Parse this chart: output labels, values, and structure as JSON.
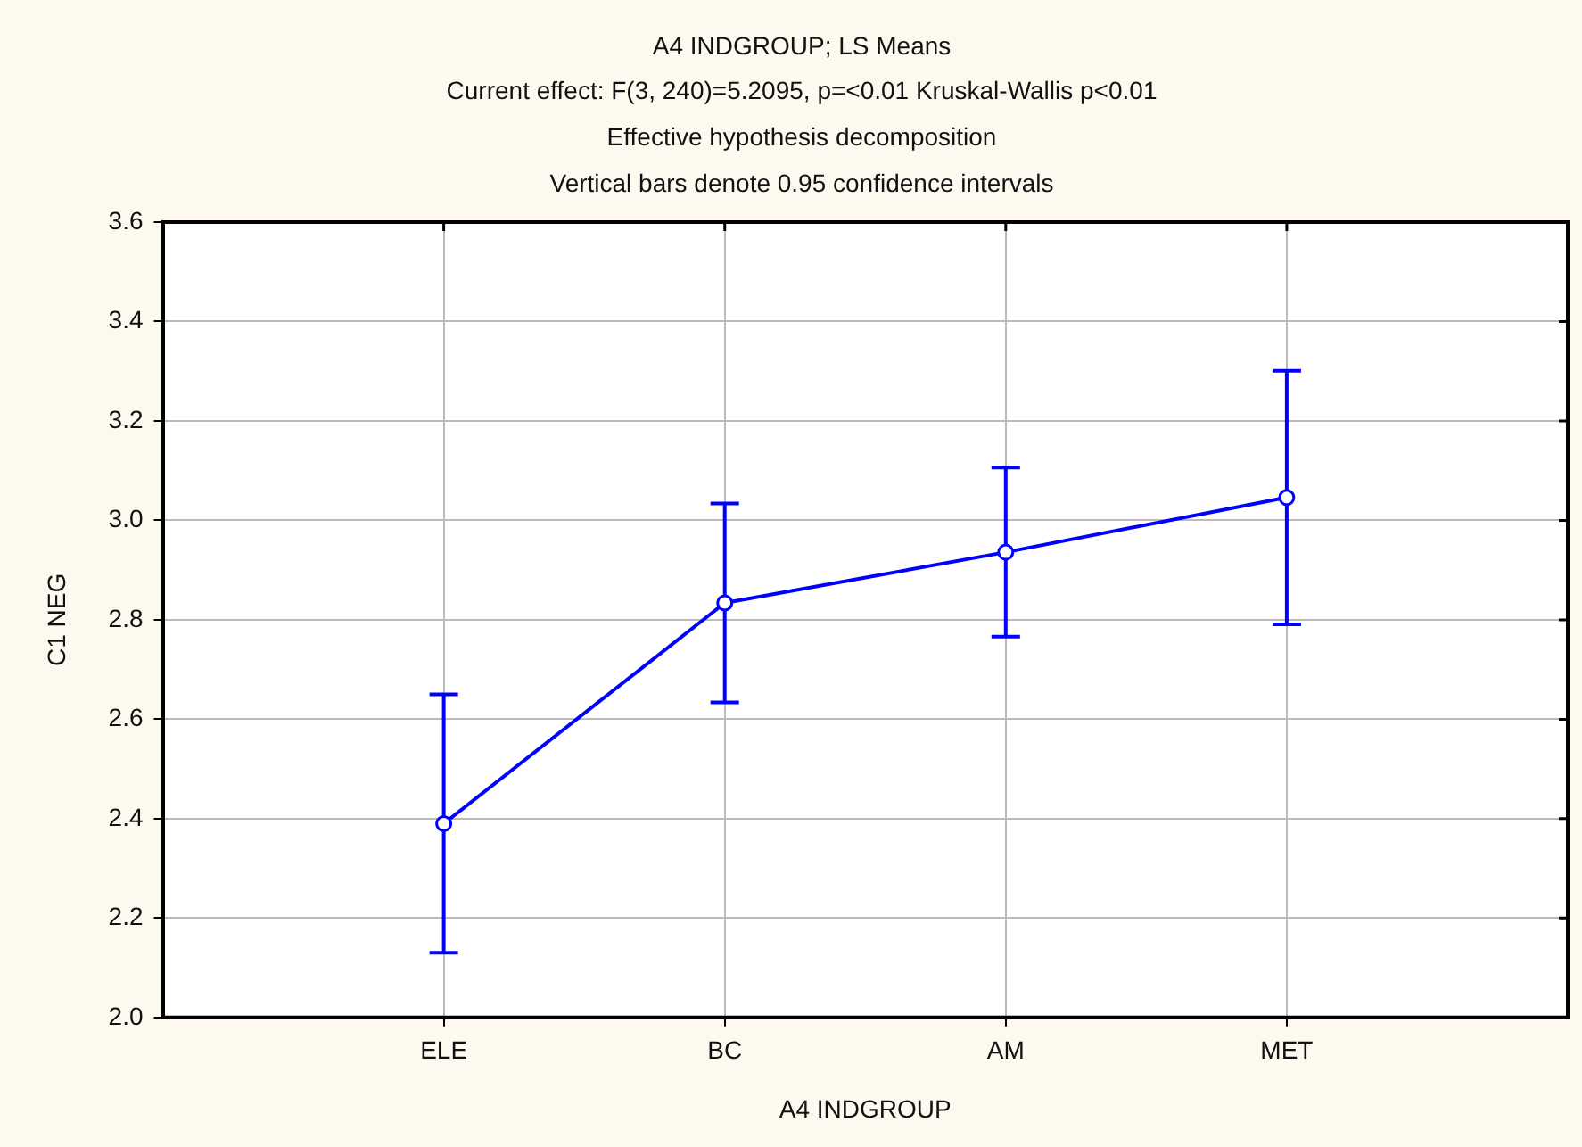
{
  "chart_data": {
    "type": "line",
    "title": "A4 INDGROUP; LS Means",
    "subtitle": "Current effect: F(3, 240)=5.2095, p=<0.01 Kruskal-Wallis p<0.01",
    "annotations": [
      "Effective hypothesis decomposition",
      "Vertical bars denote 0.95 confidence intervals"
    ],
    "xlabel": "A4 INDGROUP",
    "ylabel": "C1 NEG",
    "categories": [
      "ELE",
      "BC",
      "AM",
      "MET"
    ],
    "values": [
      2.39,
      2.834,
      2.936,
      3.046
    ],
    "errors": [
      0.26,
      0.2,
      0.17,
      0.255
    ],
    "color": "#0000ff",
    "marker": "circle",
    "line_style": "solid",
    "ylim": [
      2.0,
      3.6
    ],
    "yticks": [
      {
        "value": 2.0,
        "label": "2.0"
      },
      {
        "value": 2.2,
        "label": "2.2"
      },
      {
        "value": 2.4,
        "label": "2.4"
      },
      {
        "value": 2.6,
        "label": "2.6"
      },
      {
        "value": 2.8,
        "label": "2.8"
      },
      {
        "value": 3.0,
        "label": "3.0"
      },
      {
        "value": 3.2,
        "label": "3.2"
      },
      {
        "value": 3.4,
        "label": "3.4"
      },
      {
        "value": 3.6,
        "label": "3.6"
      }
    ],
    "grid": true,
    "legend": false
  }
}
